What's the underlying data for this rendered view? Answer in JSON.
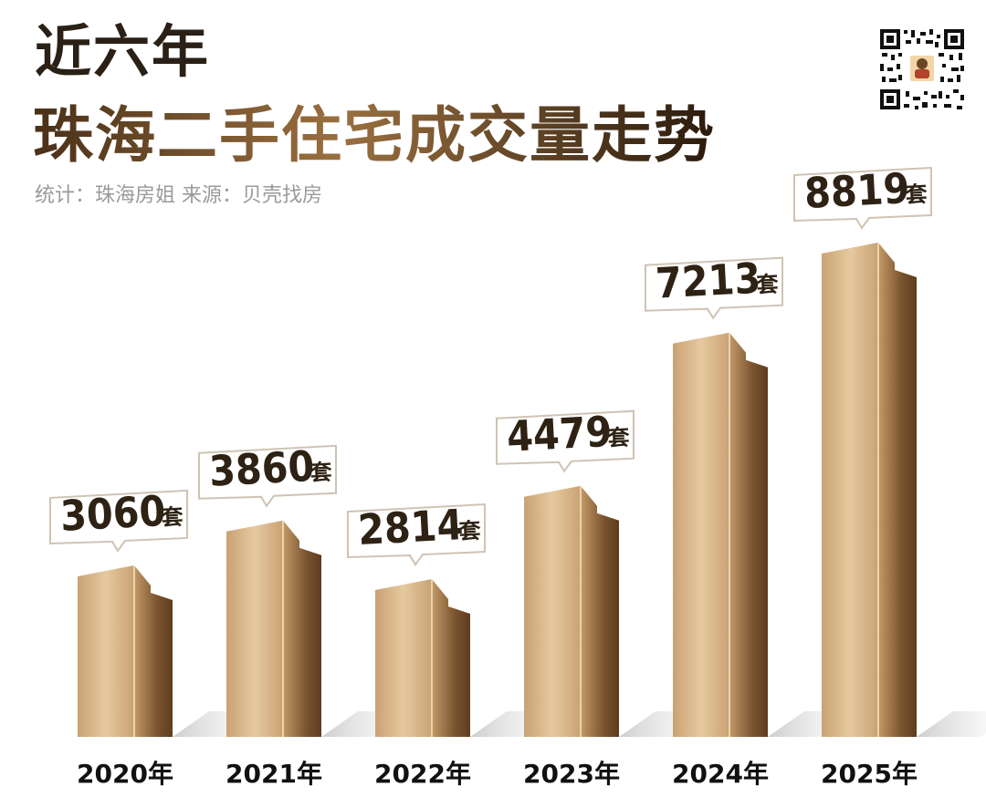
{
  "title": {
    "line1": "近六年",
    "line2": "珠海二手住宅成交量走势"
  },
  "subtitle": "统计：珠海房姐 来源：贝壳找房",
  "qr_code": {
    "icon": "qr-code-icon"
  },
  "colors": {
    "bar_front_light": "#e6c9a0",
    "bar_front_dark": "#c9a273",
    "bar_side_light": "#c49a68",
    "bar_side_dark": "#7a5430",
    "label_box": "#ffffff",
    "label_border": "#cfc3b3",
    "text_dark": "#2e2214"
  },
  "chart_data": {
    "type": "bar",
    "categories": [
      "2020年",
      "2021年",
      "2022年",
      "2023年",
      "2024年",
      "2025年"
    ],
    "values": [
      3060,
      3860,
      2814,
      4479,
      7213,
      8819
    ],
    "unit": "套",
    "value_labels": [
      "3060",
      "3860",
      "2814",
      "4479",
      "7213",
      "8819"
    ],
    "ylim": [
      0,
      9000
    ],
    "grid": false,
    "legend": "none"
  }
}
